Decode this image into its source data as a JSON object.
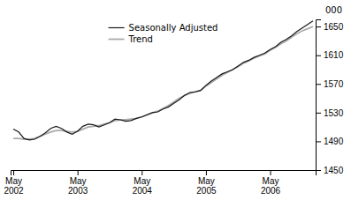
{
  "chart_data": {
    "type": "line",
    "ylabel": "000",
    "categories": [
      "May\n2002",
      null,
      null,
      null,
      null,
      null,
      null,
      null,
      null,
      null,
      null,
      null,
      "May\n2003",
      null,
      null,
      null,
      null,
      null,
      null,
      null,
      null,
      null,
      null,
      null,
      "May\n2004",
      null,
      null,
      null,
      null,
      null,
      null,
      null,
      null,
      null,
      null,
      null,
      "May\n2005",
      null,
      null,
      null,
      null,
      null,
      null,
      null,
      null,
      null,
      null,
      null,
      "May\n2006",
      null,
      null,
      null,
      null,
      null,
      null,
      null,
      null
    ],
    "series": [
      {
        "name": "Seasonally Adjusted",
        "color": "#1a1a1a",
        "values": [
          1507,
          1503,
          1494,
          1492,
          1493,
          1497,
          1502,
          1508,
          1511,
          1508,
          1503,
          1500,
          1504,
          1511,
          1514,
          1513,
          1510,
          1513,
          1516,
          1521,
          1520,
          1518,
          1519,
          1522,
          1524,
          1527,
          1530,
          1531,
          1535,
          1538,
          1543,
          1548,
          1554,
          1558,
          1559,
          1561,
          1568,
          1574,
          1579,
          1584,
          1587,
          1590,
          1595,
          1600,
          1603,
          1607,
          1610,
          1613,
          1618,
          1622,
          1628,
          1632,
          1637,
          1643,
          1648,
          1653,
          1658
        ]
      },
      {
        "name": "Trend",
        "color": "#aaaaaa",
        "values": [
          1494,
          1494,
          1493,
          1493,
          1494,
          1497,
          1500,
          1503,
          1505,
          1505,
          1504,
          1503,
          1504,
          1507,
          1510,
          1511,
          1512,
          1514,
          1516,
          1519,
          1520,
          1520,
          1521,
          1522,
          1524,
          1527,
          1530,
          1532,
          1536,
          1540,
          1545,
          1550,
          1554,
          1557,
          1559,
          1561,
          1567,
          1572,
          1577,
          1582,
          1586,
          1590,
          1594,
          1599,
          1602,
          1606,
          1609,
          1612,
          1617,
          1621,
          1626,
          1630,
          1635,
          1640,
          1644,
          1647,
          1650
        ]
      }
    ],
    "ylim": [
      1450,
      1660
    ],
    "yticks": [
      1450,
      1490,
      1530,
      1570,
      1610,
      1650
    ],
    "grid": false,
    "legend": "upper center"
  }
}
